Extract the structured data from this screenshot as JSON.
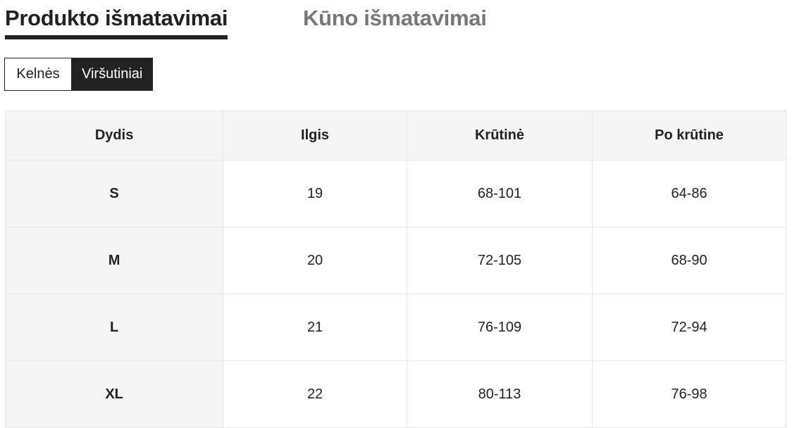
{
  "tabs": [
    "Produkto išmatavimai",
    "Kūno išmatavimai"
  ],
  "segments": [
    "Kelnės",
    "Viršutiniai"
  ],
  "table": {
    "headers": [
      "Dydis",
      "Ilgis",
      "Krūtinė",
      "Po krūtine"
    ],
    "rows": [
      [
        "S",
        "19",
        "68-101",
        "64-86"
      ],
      [
        "M",
        "20",
        "72-105",
        "68-90"
      ],
      [
        "L",
        "21",
        "76-109",
        "72-94"
      ],
      [
        "XL",
        "22",
        "80-113",
        "76-98"
      ]
    ]
  }
}
